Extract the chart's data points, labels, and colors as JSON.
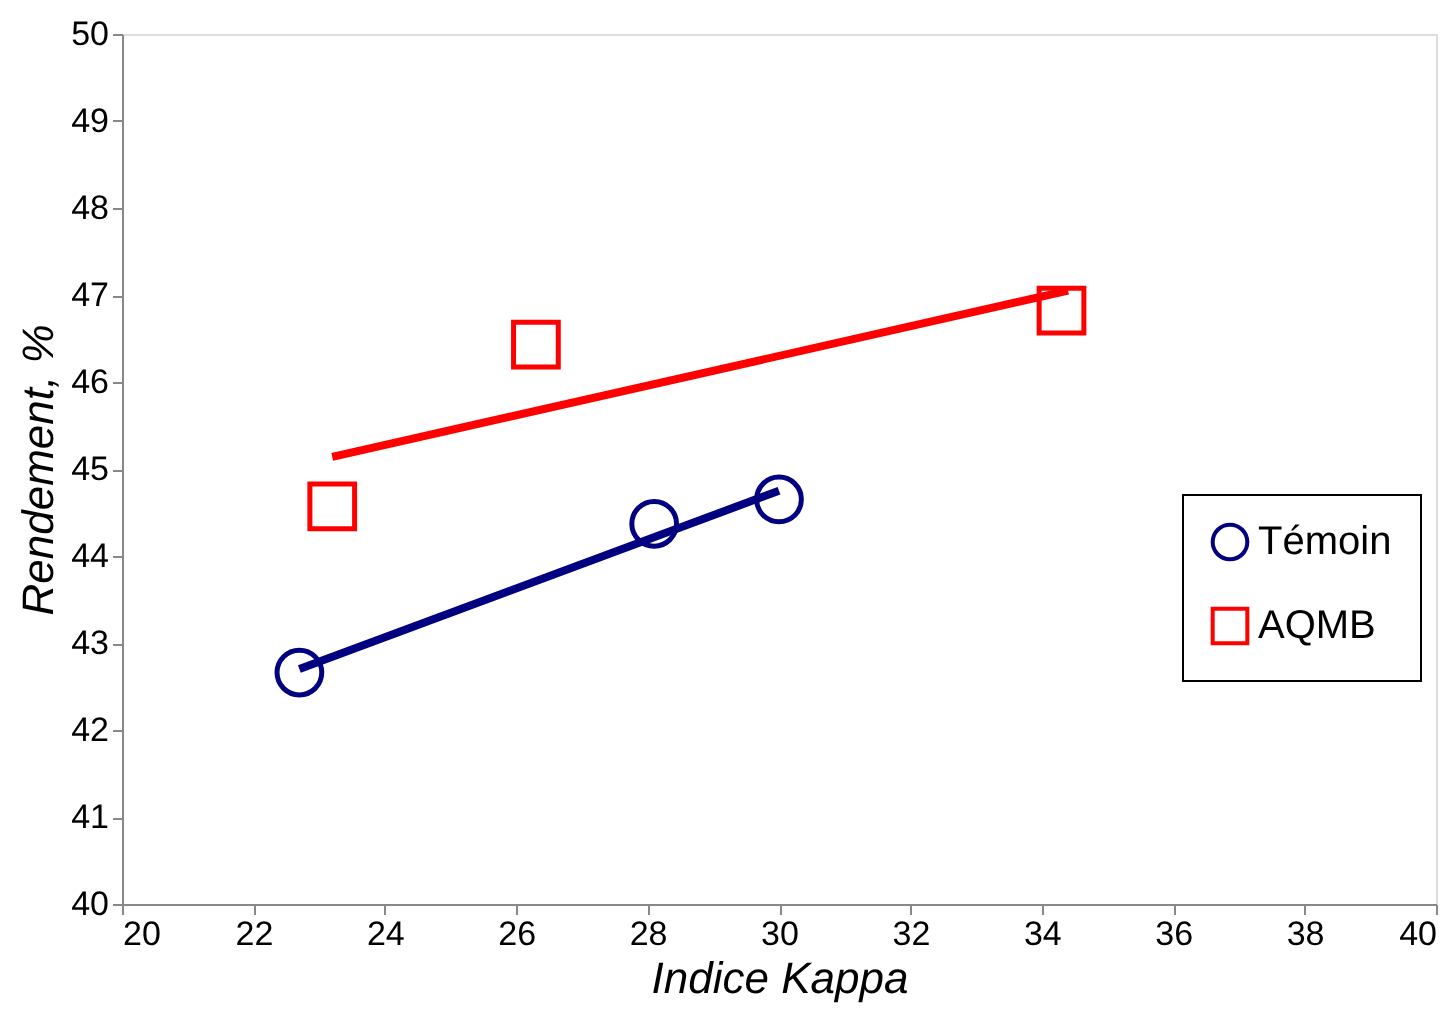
{
  "chart_data": {
    "type": "scatter",
    "xlabel": "Indice Kappa",
    "ylabel": "Rendement, %",
    "xlim": [
      20,
      40
    ],
    "xticks": [
      20,
      22,
      24,
      26,
      28,
      30,
      32,
      34,
      36,
      38,
      40
    ],
    "ylim": [
      40,
      50
    ],
    "yticks": [
      40,
      41,
      42,
      43,
      44,
      45,
      46,
      47,
      48,
      49,
      50
    ],
    "grid": false,
    "legend": "right",
    "series": [
      {
        "name": "Témoin",
        "marker": "circle",
        "color": "#000080",
        "x": [
          22.7,
          28.1,
          30.0
        ],
        "values": [
          42.66,
          44.37,
          44.65
        ]
      },
      {
        "name": "AQMB",
        "marker": "square",
        "color": "#ff0000",
        "x": [
          23.2,
          26.3,
          34.3
        ],
        "values": [
          44.57,
          46.43,
          46.82
        ]
      },
      {
        "type": "line",
        "line_style": "solid",
        "color": "#000080",
        "x": [
          22.7,
          30.0
        ],
        "values": [
          42.7,
          44.75
        ]
      },
      {
        "type": "line",
        "line_style": "solid",
        "color": "#ff0000",
        "x": [
          23.2,
          34.4
        ],
        "values": [
          45.14,
          47.05
        ]
      }
    ]
  }
}
